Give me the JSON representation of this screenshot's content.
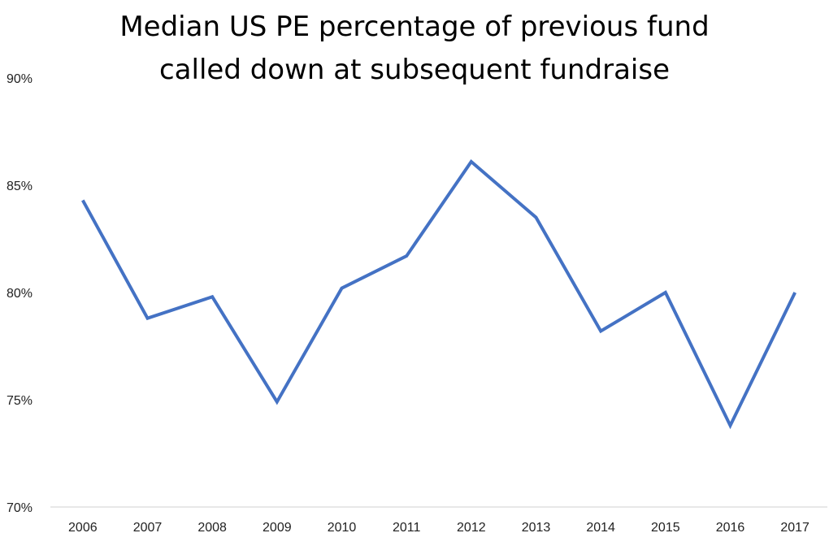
{
  "chart_data": {
    "type": "line",
    "title_lines": [
      "Median US PE percentage of previous fund",
      "called down at subsequent fundraise"
    ],
    "xlabel": "",
    "ylabel": "",
    "categories": [
      "2006",
      "2007",
      "2008",
      "2009",
      "2010",
      "2011",
      "2012",
      "2013",
      "2014",
      "2015",
      "2016",
      "2017"
    ],
    "values": [
      84.3,
      78.8,
      79.8,
      74.9,
      80.2,
      81.7,
      86.1,
      83.5,
      78.2,
      80.0,
      73.8,
      80.0
    ],
    "ylim": [
      70,
      90
    ],
    "y_ticks": [
      90,
      85,
      80,
      75,
      70
    ],
    "y_tick_labels": [
      "90%",
      "85%",
      "80%",
      "75%",
      "70%"
    ],
    "line_color": "#4472C4",
    "grid": false,
    "legend": "none"
  }
}
